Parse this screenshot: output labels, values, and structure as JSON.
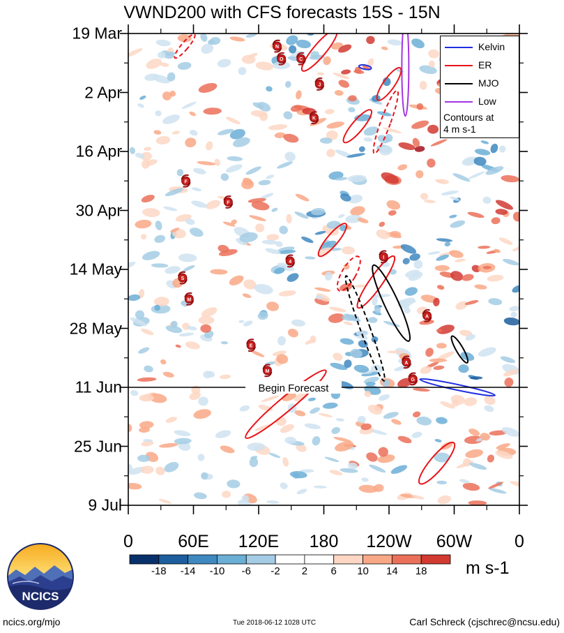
{
  "chart_data": {
    "type": "heatmap",
    "title": "VWND200 with CFS forecasts  15S - 15N",
    "xlabel": "",
    "ylabel": "",
    "x_tick_labels": [
      "0",
      "60E",
      "120E",
      "180",
      "120W",
      "60W",
      "0"
    ],
    "y_tick_labels": [
      "19 Mar",
      "2 Apr",
      "16 Apr",
      "30 Apr",
      "14 May",
      "28 May",
      "11 Jun",
      "25 Jun",
      "9 Jul"
    ],
    "x_range_lon": [
      0,
      360
    ],
    "y_range_days": [
      0,
      112
    ],
    "forecast_line": {
      "label": "Begin Forecast",
      "day": 84
    },
    "legend": {
      "items": [
        {
          "name": "Kelvin",
          "color": "#1f2fe0"
        },
        {
          "name": "ER",
          "color": "#e8141a"
        },
        {
          "name": "MJO",
          "color": "#000000"
        },
        {
          "name": "Low",
          "color": "#a335e0"
        }
      ],
      "note": [
        "Contours at",
        "4 m s-1"
      ]
    },
    "colorbar": {
      "units": "m s-1",
      "tick_labels": [
        "-18",
        "-14",
        "-10",
        "-6",
        "-2",
        "2",
        "6",
        "10",
        "14",
        "18"
      ],
      "colors": [
        "#08306b",
        "#1c5e9e",
        "#3f88c0",
        "#6baed6",
        "#a4cce4",
        "#cfe3f1",
        "#ffffff",
        "#fdd7c4",
        "#f9a886",
        "#eb7059",
        "#d23a32",
        "#a3101d",
        "#67000d"
      ]
    },
    "storms": [
      {
        "label": "N",
        "lon": 137,
        "day": 3
      },
      {
        "label": "O",
        "lon": 141,
        "day": 6
      },
      {
        "label": "C",
        "lon": 159,
        "day": 6
      },
      {
        "label": "J",
        "lon": 176,
        "day": 12
      },
      {
        "label": "K",
        "lon": 171,
        "day": 20
      },
      {
        "label": "F",
        "lon": 53,
        "day": 35
      },
      {
        "label": "F",
        "lon": 92,
        "day": 40
      },
      {
        "label": "I",
        "lon": 235,
        "day": 53
      },
      {
        "label": "4",
        "lon": 149,
        "day": 54
      },
      {
        "label": "S",
        "lon": 50,
        "day": 58
      },
      {
        "label": "M",
        "lon": 56,
        "day": 63
      },
      {
        "label": "A",
        "lon": 275,
        "day": 67
      },
      {
        "label": "E",
        "lon": 113,
        "day": 74
      },
      {
        "label": "A",
        "lon": 256,
        "day": 78
      },
      {
        "label": "M",
        "lon": 128,
        "day": 80
      },
      {
        "label": "G",
        "lon": 262,
        "day": 82
      }
    ]
  },
  "branding": {
    "logo_text": "NCICS",
    "site": "ncics.org/mjo",
    "timestamp": "Tue 2018-06-12 1028 UTC",
    "author": "Carl Schreck (cjschrec@ncsu.edu)"
  }
}
